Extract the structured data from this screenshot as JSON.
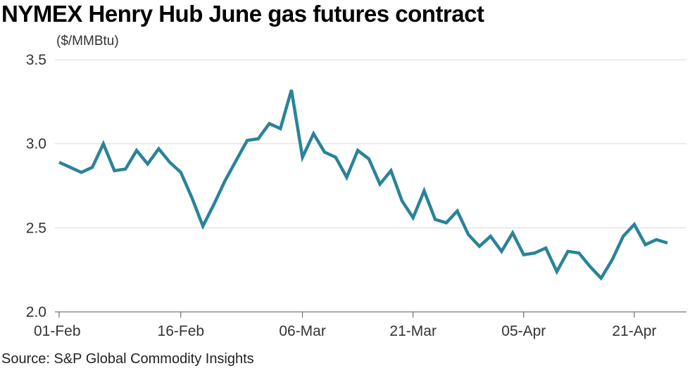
{
  "title": "NYMEX Henry Hub June gas futures contract",
  "source": "Source: S&P Global Commodity Insights",
  "chart_data": {
    "type": "line",
    "title": "NYMEX Henry Hub June gas futures contract",
    "ylabel": "($/MMBtu)",
    "xlabel": "",
    "ylim": [
      2.0,
      3.5
    ],
    "yticks": [
      2.0,
      2.5,
      3.0,
      3.5
    ],
    "ytick_labels": [
      "2.0",
      "2.5",
      "3.0",
      "3.5"
    ],
    "xtick_labels": [
      {
        "index": 0,
        "label": "01-Feb"
      },
      {
        "index": 11,
        "label": "16-Feb"
      },
      {
        "index": 22,
        "label": "06-Mar"
      },
      {
        "index": 32,
        "label": "21-Mar"
      },
      {
        "index": 42,
        "label": "05-Apr"
      },
      {
        "index": 52,
        "label": "21-Apr"
      }
    ],
    "grid": true,
    "color": "#2a8399",
    "series": [
      {
        "name": "",
        "values": [
          2.89,
          2.86,
          2.83,
          2.86,
          3.0,
          2.84,
          2.85,
          2.96,
          2.88,
          2.97,
          2.89,
          2.83,
          2.68,
          2.51,
          2.64,
          2.78,
          2.9,
          3.02,
          3.03,
          3.12,
          3.09,
          3.32,
          2.92,
          3.06,
          2.95,
          2.92,
          2.8,
          2.96,
          2.91,
          2.76,
          2.84,
          2.66,
          2.56,
          2.72,
          2.55,
          2.53,
          2.6,
          2.46,
          2.39,
          2.45,
          2.36,
          2.47,
          2.34,
          2.35,
          2.38,
          2.24,
          2.36,
          2.35,
          2.27,
          2.2,
          2.31,
          2.45,
          2.52,
          2.4,
          2.43,
          2.41
        ]
      }
    ]
  }
}
